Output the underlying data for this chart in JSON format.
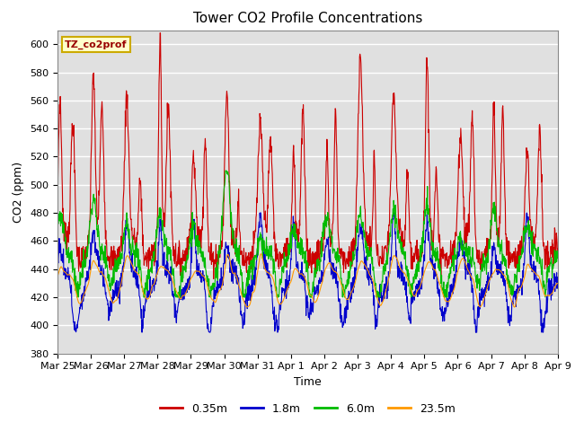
{
  "title": "Tower CO2 Profile Concentrations",
  "xlabel": "Time",
  "ylabel": "CO2 (ppm)",
  "ylim": [
    380,
    610
  ],
  "yticks": [
    380,
    400,
    420,
    440,
    460,
    480,
    500,
    520,
    540,
    560,
    580,
    600
  ],
  "plot_bg_color": "#e0e0e0",
  "legend_label": "TZ_co2prof",
  "legend_bg": "#ffffcc",
  "legend_edge": "#ccaa00",
  "series": [
    {
      "label": "0.35m",
      "color": "#cc0000",
      "lw": 0.8
    },
    {
      "label": "1.8m",
      "color": "#0000cc",
      "lw": 0.8
    },
    {
      "label": "6.0m",
      "color": "#00bb00",
      "lw": 0.8
    },
    {
      "label": "23.5m",
      "color": "#ff9900",
      "lw": 0.8
    }
  ],
  "n_days": 15,
  "pts_per_day": 96,
  "xticklabels": [
    "Mar 25",
    "Mar 26",
    "Mar 27",
    "Mar 28",
    "Mar 29",
    "Mar 30",
    "Mar 31",
    "Apr 1",
    "Apr 2",
    "Apr 3",
    "Apr 4",
    "Apr 5",
    "Apr 6",
    "Apr 7",
    "Apr 8",
    "Apr 9"
  ],
  "title_fontsize": 11,
  "axis_fontsize": 9,
  "tick_fontsize": 8
}
